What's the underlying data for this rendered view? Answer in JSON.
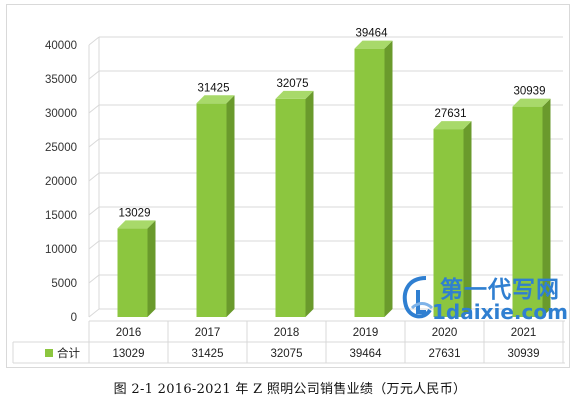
{
  "chart_data": {
    "type": "bar",
    "categories": [
      "2016",
      "2017",
      "2018",
      "2019",
      "2020",
      "2021"
    ],
    "series": [
      {
        "name": "合计",
        "values": [
          13029,
          31425,
          32075,
          39464,
          27631,
          30939
        ]
      }
    ],
    "ylim": [
      0,
      40000
    ],
    "yticks": [
      "0",
      "5000",
      "10000",
      "15000",
      "20000",
      "25000",
      "30000",
      "35000",
      "40000"
    ],
    "grid": true,
    "legend": "data-table",
    "bar_color": "#8cc63f",
    "bar_side_color": "#6a9a2c",
    "bar_top_color": "#a8d96a"
  },
  "caption": "图 2-1 2016-2021 年 Z 照明公司销售业绩（万元人民币）",
  "watermark": {
    "line1": "第一代写网",
    "line2": "1daixie.com",
    "color": "#2f7fd1"
  }
}
